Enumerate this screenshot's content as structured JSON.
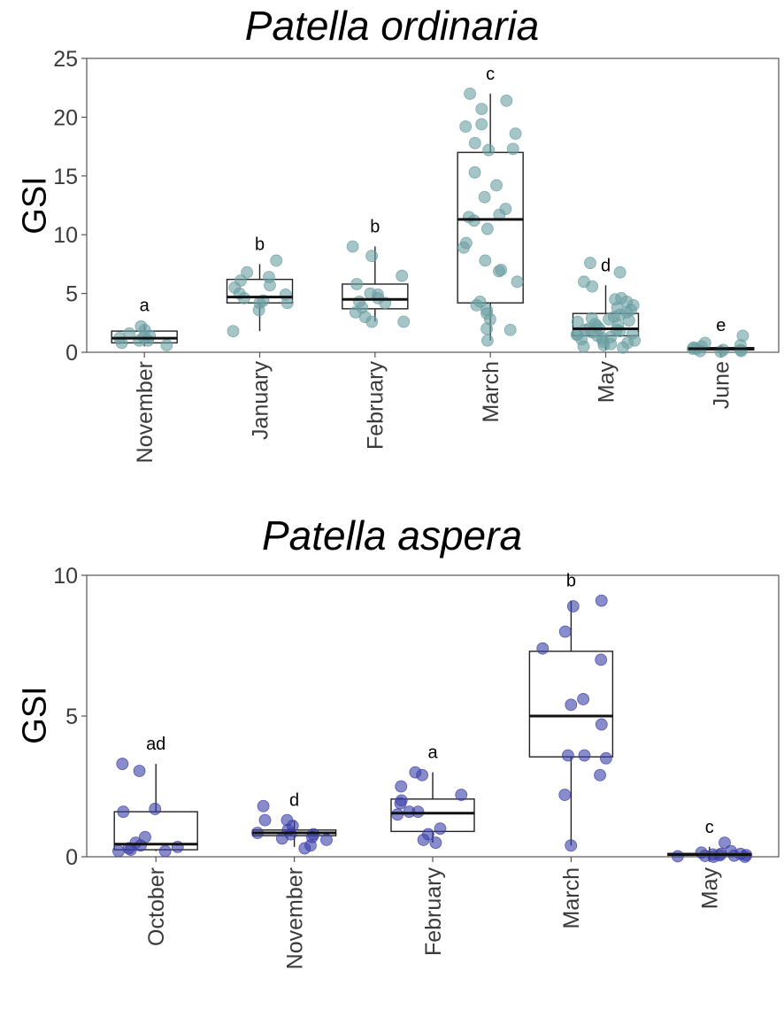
{
  "chart_data": [
    {
      "type": "box",
      "title": "Patella ordinaria",
      "ylabel": "GSI",
      "ylim": [
        0,
        25
      ],
      "yticks": [
        0,
        5,
        10,
        15,
        20,
        25
      ],
      "point_color": "#6b9ea1",
      "categories": [
        "November",
        "January",
        "February",
        "March",
        "May",
        "June"
      ],
      "letters": [
        "a",
        "b",
        "b",
        "c",
        "d",
        "e"
      ],
      "boxes": [
        {
          "q1": 0.8,
          "median": 1.2,
          "q3": 1.8,
          "wlow": 0.5,
          "whigh": 2.3
        },
        {
          "q1": 4.2,
          "median": 4.7,
          "q3": 6.2,
          "wlow": 1.8,
          "whigh": 7.5
        },
        {
          "q1": 3.7,
          "median": 4.5,
          "q3": 5.8,
          "wlow": 2.6,
          "whigh": 9.0
        },
        {
          "q1": 4.2,
          "median": 11.3,
          "q3": 17.0,
          "wlow": 1.0,
          "whigh": 22.0
        },
        {
          "q1": 1.4,
          "median": 2.0,
          "q3": 3.3,
          "wlow": 0.2,
          "whigh": 5.7
        },
        {
          "q1": 0.2,
          "median": 0.3,
          "q3": 0.4,
          "wlow": 0.1,
          "whigh": 0.6
        }
      ],
      "points": [
        [
          1.3,
          1.0,
          0.8,
          1.6,
          2.2,
          1.9,
          1.2,
          0.6,
          1.4,
          1.0
        ],
        [
          6.8,
          7.8,
          6.4,
          5.5,
          4.2,
          4.6,
          5.7,
          5.0,
          4.4,
          3.6,
          6.1,
          1.8,
          4.9,
          4.2
        ],
        [
          9.0,
          8.2,
          6.5,
          5.8,
          5.0,
          4.6,
          4.2,
          3.8,
          3.4,
          2.6,
          2.6,
          4.3,
          4.9,
          3.0
        ],
        [
          22.0,
          21.4,
          20.7,
          19.4,
          19.2,
          18.6,
          17.8,
          17.3,
          17.2,
          15.3,
          14.2,
          13.2,
          12.2,
          11.7,
          11.5,
          11.2,
          10.5,
          9.3,
          8.9,
          7.8,
          7.0,
          6.9,
          6.0,
          4.3,
          3.6,
          2.8,
          2.0,
          1.9,
          1.0,
          3.3,
          4.0
        ],
        [
          7.6,
          6.8,
          6.0,
          5.6,
          4.6,
          4.3,
          4.0,
          3.6,
          3.4,
          3.2,
          3.0,
          2.8,
          2.6,
          2.4,
          2.2,
          2.0,
          2.0,
          1.9,
          1.8,
          1.7,
          1.6,
          1.5,
          1.4,
          1.3,
          1.2,
          1.1,
          1.0,
          0.9,
          0.8,
          0.7,
          0.6,
          0.5,
          0.4,
          2.7,
          2.9,
          1.5,
          1.9,
          2.3,
          3.8,
          4.5
        ],
        [
          1.4,
          0.8,
          0.6,
          0.5,
          0.4,
          0.3,
          0.3,
          0.2,
          0.2,
          0.1,
          0.1,
          0.05
        ]
      ]
    },
    {
      "type": "box",
      "title": "Patella aspera",
      "ylabel": "GSI",
      "ylim": [
        0,
        10
      ],
      "yticks": [
        0,
        5,
        10
      ],
      "point_color": "#3b3fa8",
      "categories": [
        "October",
        "November",
        "February",
        "March",
        "May"
      ],
      "letters": [
        "ad",
        "d",
        "a",
        "b",
        "c"
      ],
      "boxes": [
        {
          "q1": 0.25,
          "median": 0.45,
          "q3": 1.6,
          "wlow": 0.2,
          "whigh": 3.3
        },
        {
          "q1": 0.75,
          "median": 0.85,
          "q3": 0.95,
          "wlow": 0.35,
          "whigh": 1.3
        },
        {
          "q1": 0.9,
          "median": 1.55,
          "q3": 2.05,
          "wlow": 0.5,
          "whigh": 3.0
        },
        {
          "q1": 3.55,
          "median": 5.0,
          "q3": 7.3,
          "wlow": 0.4,
          "whigh": 9.1
        },
        {
          "q1": 0.05,
          "median": 0.08,
          "q3": 0.12,
          "wlow": 0.0,
          "whigh": 0.35
        }
      ],
      "points": [
        [
          3.3,
          3.05,
          1.7,
          1.6,
          0.7,
          0.5,
          0.4,
          0.35,
          0.3,
          0.25,
          0.2,
          0.2
        ],
        [
          1.8,
          1.3,
          1.3,
          1.1,
          0.95,
          0.85,
          0.8,
          0.8,
          0.7,
          0.65,
          0.6,
          0.4,
          0.3
        ],
        [
          3.0,
          2.9,
          2.5,
          2.2,
          2.0,
          1.9,
          1.6,
          1.6,
          1.5,
          1.0,
          0.8,
          0.6,
          0.5
        ],
        [
          9.1,
          8.9,
          8.0,
          7.4,
          7.0,
          5.6,
          5.4,
          4.7,
          3.6,
          3.6,
          3.5,
          2.9,
          2.2,
          0.4
        ],
        [
          0.5,
          0.2,
          0.1,
          0.08,
          0.06,
          0.05,
          0.04,
          0.03,
          0.02,
          0.0,
          0.0,
          0.1,
          0.15
        ]
      ]
    }
  ]
}
